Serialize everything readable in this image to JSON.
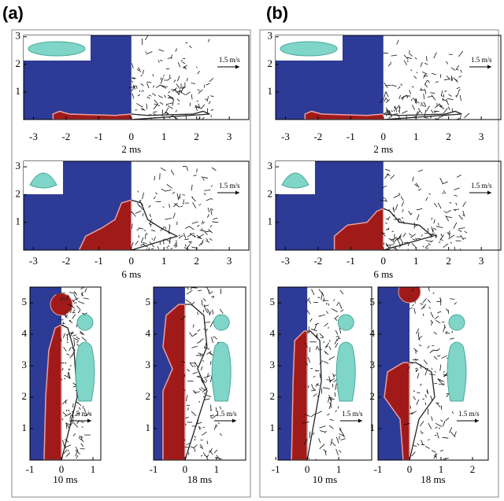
{
  "panels": [
    {
      "label": "(a)",
      "subplots": [
        {
          "xticks": [
            -3,
            -2,
            -1,
            0,
            1,
            2,
            3
          ],
          "yticks": [
            1,
            2,
            3
          ],
          "time": "2 ms",
          "velocity_scale": "1.5 m/s"
        },
        {
          "xticks": [
            -3,
            -2,
            -1,
            0,
            1,
            2,
            3
          ],
          "yticks": [
            1,
            2,
            3
          ],
          "time": "6 ms",
          "velocity_scale": "1.5 m/s"
        },
        {
          "xticks": [
            -1,
            0,
            1
          ],
          "yticks": [
            1,
            2,
            3,
            4,
            5
          ],
          "time": "10 ms",
          "velocity_scale": "1.5 m/s"
        },
        {
          "xticks": [
            -1,
            0,
            1
          ],
          "yticks": [
            1,
            2,
            3,
            4,
            5
          ],
          "time": "18 ms",
          "velocity_scale": "1.5 m/s"
        }
      ]
    },
    {
      "label": "(b)",
      "subplots": [
        {
          "xticks": [
            -3,
            -2,
            -1,
            0,
            1,
            2,
            3
          ],
          "yticks": [
            1,
            2,
            3
          ],
          "time": "2 ms",
          "velocity_scale": "1.5 m/s"
        },
        {
          "xticks": [
            -3,
            -2,
            -1,
            0,
            1,
            2,
            3
          ],
          "yticks": [
            1,
            2,
            3
          ],
          "time": "6 ms",
          "velocity_scale": "1.5 m/s"
        },
        {
          "xticks": [
            -1,
            0,
            1
          ],
          "yticks": [
            1,
            2,
            3,
            4,
            5
          ],
          "time": "10 ms",
          "velocity_scale": "1.5 m/s"
        },
        {
          "xticks": [
            -1,
            0,
            1,
            2
          ],
          "yticks": [
            1,
            2,
            3,
            4,
            5
          ],
          "time": "18 ms",
          "velocity_scale": "1.5 m/s"
        }
      ]
    }
  ]
}
